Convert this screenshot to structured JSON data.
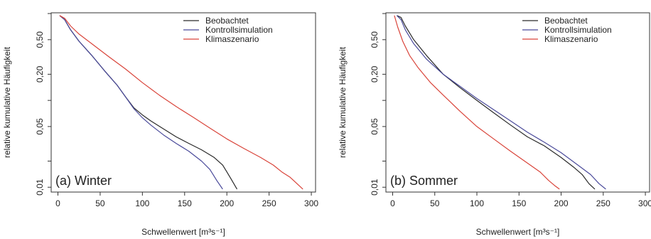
{
  "colors": {
    "beobachtet": "#2a2a2a",
    "kontrollsimulation": "#4a4a9a",
    "klimaszenario": "#d9443a",
    "axis": "#333333",
    "text": "#222222"
  },
  "chart_data": [
    {
      "type": "line",
      "panel_label": "(a) Winter",
      "xlabel": "Schwellenwert [m³s⁻¹]",
      "ylabel": "relative kumulative Häufigkeit",
      "y_scale": "log",
      "xlim": [
        -8,
        305
      ],
      "ylim": [
        0.0088,
        1.02
      ],
      "x_ticks": [
        0,
        50,
        100,
        150,
        200,
        250,
        300
      ],
      "y_tick_labels": [
        "0,01",
        "0,05",
        "0,20",
        "0,50"
      ],
      "y_tick_values": [
        0.01,
        0.05,
        0.2,
        0.5
      ],
      "y_minor_ticks": [
        0.02,
        0.1,
        1.0
      ],
      "legend_position": "top-right",
      "series": [
        {
          "name": "Beobachtet",
          "color_key": "beobachtet",
          "x": [
            2,
            8,
            15,
            25,
            40,
            55,
            70,
            80,
            90,
            100,
            110,
            125,
            140,
            155,
            170,
            185,
            195,
            200,
            206,
            212
          ],
          "y": [
            0.95,
            0.85,
            0.65,
            0.48,
            0.33,
            0.22,
            0.15,
            0.11,
            0.082,
            0.068,
            0.058,
            0.047,
            0.038,
            0.032,
            0.027,
            0.022,
            0.018,
            0.015,
            0.012,
            0.0095
          ]
        },
        {
          "name": "Kontrollsimulation",
          "color_key": "kontrollsimulation",
          "x": [
            2,
            8,
            15,
            25,
            40,
            55,
            70,
            80,
            90,
            100,
            110,
            125,
            140,
            155,
            170,
            180,
            188,
            195
          ],
          "y": [
            0.95,
            0.85,
            0.65,
            0.48,
            0.33,
            0.22,
            0.15,
            0.11,
            0.08,
            0.063,
            0.052,
            0.04,
            0.032,
            0.026,
            0.02,
            0.016,
            0.012,
            0.0095
          ]
        },
        {
          "name": "Klimaszenario",
          "color_key": "klimaszenario",
          "x": [
            2,
            8,
            15,
            25,
            40,
            60,
            80,
            100,
            120,
            140,
            160,
            180,
            200,
            220,
            240,
            255,
            265,
            275,
            283,
            290
          ],
          "y": [
            0.95,
            0.88,
            0.72,
            0.58,
            0.45,
            0.32,
            0.23,
            0.16,
            0.115,
            0.085,
            0.064,
            0.048,
            0.036,
            0.028,
            0.022,
            0.018,
            0.015,
            0.013,
            0.011,
            0.0095
          ]
        }
      ]
    },
    {
      "type": "line",
      "panel_label": "(b) Sommer",
      "xlabel": "Schwellenwert [m³s⁻¹]",
      "ylabel": "relative kumulative Häufigkeit",
      "y_scale": "log",
      "xlim": [
        -8,
        305
      ],
      "ylim": [
        0.0088,
        1.02
      ],
      "x_ticks": [
        0,
        50,
        100,
        150,
        200,
        250,
        300
      ],
      "y_tick_labels": [
        "0,01",
        "0,05",
        "0,20",
        "0,50"
      ],
      "y_tick_values": [
        0.01,
        0.05,
        0.2,
        0.5
      ],
      "y_minor_ticks": [
        0.02,
        0.1,
        1.0
      ],
      "legend_position": "top-right",
      "series": [
        {
          "name": "Beobachtet",
          "color_key": "beobachtet",
          "x": [
            5,
            10,
            15,
            25,
            40,
            60,
            80,
            100,
            120,
            140,
            160,
            180,
            200,
            215,
            225,
            233,
            240
          ],
          "y": [
            0.95,
            0.9,
            0.72,
            0.5,
            0.33,
            0.2,
            0.14,
            0.1,
            0.072,
            0.052,
            0.038,
            0.03,
            0.022,
            0.017,
            0.014,
            0.011,
            0.0095
          ]
        },
        {
          "name": "Kontrollsimulation",
          "color_key": "kontrollsimulation",
          "x": [
            5,
            10,
            15,
            25,
            40,
            60,
            80,
            100,
            120,
            140,
            160,
            180,
            200,
            220,
            235,
            245,
            253
          ],
          "y": [
            0.95,
            0.85,
            0.65,
            0.45,
            0.3,
            0.2,
            0.145,
            0.105,
            0.078,
            0.058,
            0.043,
            0.033,
            0.025,
            0.018,
            0.014,
            0.011,
            0.0095
          ]
        },
        {
          "name": "Klimaszenario",
          "color_key": "klimaszenario",
          "x": [
            2,
            6,
            12,
            20,
            30,
            45,
            60,
            80,
            100,
            120,
            140,
            160,
            175,
            185,
            192,
            198
          ],
          "y": [
            0.95,
            0.7,
            0.48,
            0.33,
            0.24,
            0.16,
            0.115,
            0.075,
            0.05,
            0.036,
            0.026,
            0.019,
            0.015,
            0.012,
            0.0105,
            0.0095
          ]
        }
      ]
    }
  ]
}
